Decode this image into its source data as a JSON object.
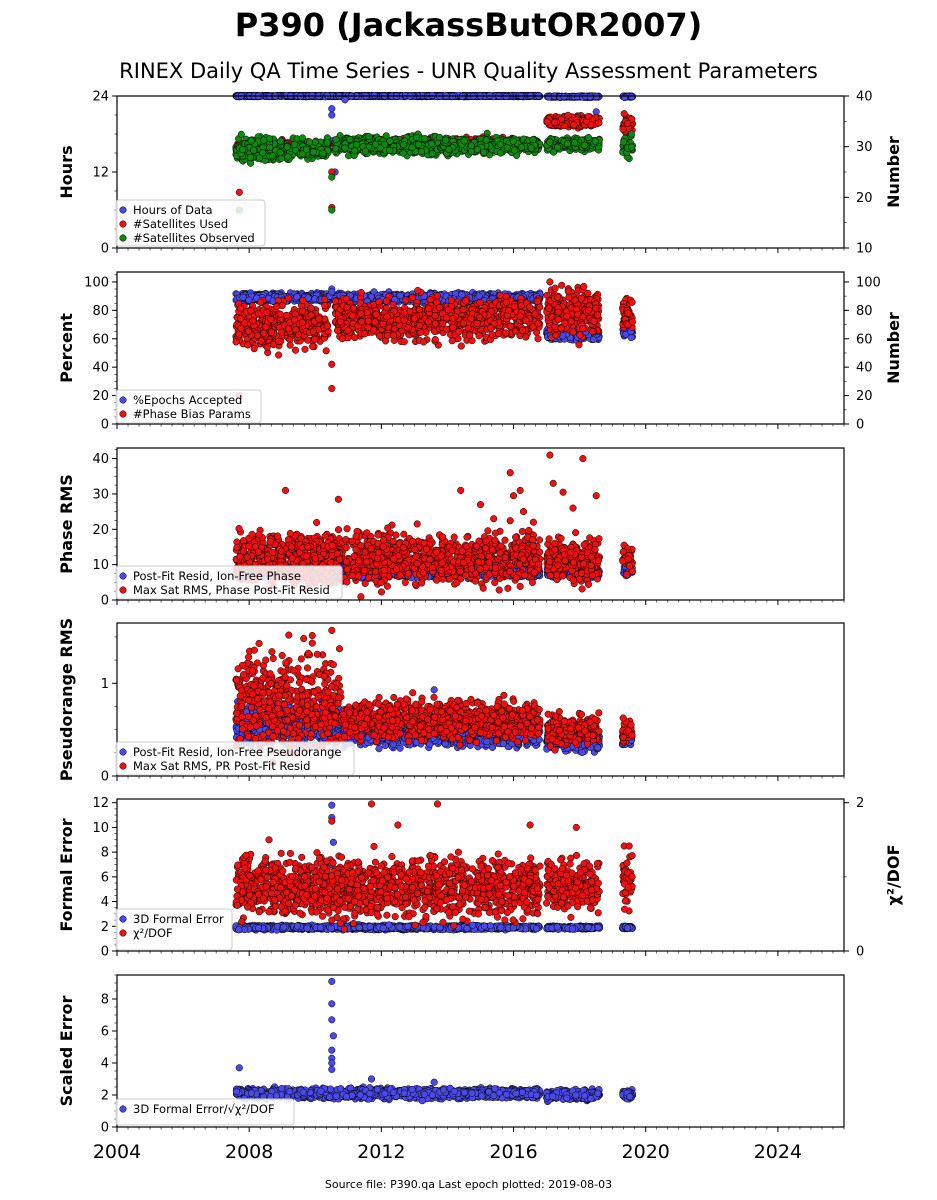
{
  "header": {
    "title": "P390 (JackassButOR2007)",
    "subtitle": "RINEX Daily QA Time Series - UNR Quality Assessment Parameters"
  },
  "footer": {
    "source": "Source file: P390.qa Last epoch plotted: 2019-08-03"
  },
  "colors": {
    "blue": "#4a4ae8",
    "red": "#ee1111",
    "green": "#118811"
  },
  "chart_data": [
    {
      "type": "scatter",
      "panel": "hours",
      "xlabel": "",
      "ylabel": "Hours",
      "y2label": "Number",
      "xlim": [
        2004,
        2026
      ],
      "ylim": [
        0,
        24
      ],
      "y2lim": [
        10,
        40
      ],
      "yticks": [
        "0",
        "12",
        "24"
      ],
      "y2ticks": [
        "10",
        "20",
        "30",
        "40"
      ],
      "legend": "lower-left",
      "series": [
        {
          "name": "Hours of Data",
          "color": "blue",
          "axis": "left",
          "segments": [
            [
              2007.6,
              2016.8,
              24.0,
              0.05
            ],
            [
              2017.0,
              2018.6,
              23.9,
              0.05
            ],
            [
              2019.3,
              2019.6,
              23.9,
              0.05
            ]
          ],
          "outliers": [
            [
              2010.5,
              21.0
            ],
            [
              2010.5,
              22.0
            ],
            [
              2010.55,
              17.0
            ],
            [
              2010.6,
              12.0
            ],
            [
              2007.7,
              6.0
            ],
            [
              2010.9,
              23.4
            ],
            [
              2018.5,
              21.5
            ]
          ]
        },
        {
          "name": "#Satellites Used",
          "color": "red",
          "axis": "right",
          "segments": [
            [
              2007.6,
              2010.4,
              30.0,
              0.5
            ],
            [
              2010.6,
              2016.8,
              30.5,
              0.5
            ],
            [
              2017.0,
              2018.6,
              35.0,
              0.5
            ],
            [
              2019.3,
              2019.6,
              34.5,
              0.8
            ]
          ],
          "outliers": [
            [
              2007.7,
              21.0
            ],
            [
              2010.5,
              18.0
            ],
            [
              2010.5,
              25.0
            ],
            [
              2009.0,
              30.0
            ],
            [
              2019.35,
              36.5
            ]
          ]
        },
        {
          "name": "#Satellites Observed",
          "color": "green",
          "axis": "right",
          "segments": [
            [
              2007.6,
              2010.4,
              29.5,
              1.0
            ],
            [
              2010.6,
              2016.8,
              30.2,
              0.8
            ],
            [
              2017.0,
              2018.6,
              30.5,
              0.6
            ],
            [
              2019.3,
              2019.6,
              30.0,
              1.2
            ]
          ],
          "outliers": [
            [
              2007.7,
              17.5
            ],
            [
              2010.5,
              17.5
            ],
            [
              2010.5,
              24.0
            ]
          ]
        }
      ]
    },
    {
      "type": "scatter",
      "panel": "percent",
      "xlabel": "",
      "ylabel": "Percent",
      "y2label": "Number",
      "xlim": [
        2004,
        2026
      ],
      "ylim": [
        0,
        107
      ],
      "y2lim": [
        0,
        107
      ],
      "yticks": [
        "0",
        "20",
        "40",
        "60",
        "80",
        "100"
      ],
      "y2ticks": [
        "0",
        "20",
        "40",
        "60",
        "80",
        "100"
      ],
      "legend": "lower-left",
      "series": [
        {
          "name": "%Epochs Accepted",
          "color": "blue",
          "axis": "left",
          "segments": [
            [
              2007.6,
              2016.8,
              89.0,
              1.5
            ],
            [
              2017.0,
              2018.6,
              63.0,
              2.0
            ],
            [
              2019.3,
              2019.6,
              65.0,
              2.0
            ]
          ],
          "outliers": [
            [
              2010.5,
              95.0
            ],
            [
              2010.5,
              93.0
            ]
          ]
        },
        {
          "name": "#Phase Bias Params",
          "color": "red",
          "axis": "right",
          "segments": [
            [
              2007.6,
              2010.4,
              70.0,
              8.0
            ],
            [
              2010.6,
              2016.8,
              74.0,
              7.0
            ],
            [
              2017.0,
              2018.6,
              80.0,
              8.0
            ],
            [
              2019.3,
              2019.6,
              78.0,
              7.0
            ]
          ],
          "outliers": [
            [
              2007.7,
              20.0
            ],
            [
              2010.5,
              25.0
            ],
            [
              2010.5,
              42.0
            ],
            [
              2017.1,
              100.0
            ],
            [
              2013.1,
              94.0
            ]
          ]
        }
      ]
    },
    {
      "type": "scatter",
      "panel": "phase",
      "xlabel": "",
      "ylabel": "Phase RMS",
      "xlim": [
        2004,
        2026
      ],
      "ylim": [
        0,
        43
      ],
      "yticks": [
        "0",
        "10",
        "20",
        "30",
        "40"
      ],
      "legend": "lower-left",
      "series": [
        {
          "name": "Post-Fit Resid, Ion-Free Phase",
          "color": "blue",
          "axis": "left",
          "segments": [
            [
              2007.6,
              2016.8,
              8.0,
              0.8
            ],
            [
              2017.0,
              2018.6,
              8.0,
              0.8
            ],
            [
              2019.3,
              2019.6,
              8.5,
              0.8
            ]
          ],
          "outliers": [
            [
              2010.5,
              6.5
            ]
          ]
        },
        {
          "name": "Max Sat RMS, Phase Post-Fit Resid",
          "color": "red",
          "axis": "left",
          "segments": [
            [
              2007.6,
              2016.8,
              12.0,
              3.5
            ],
            [
              2017.0,
              2018.6,
              11.5,
              3.0
            ],
            [
              2019.3,
              2019.6,
              12.0,
              2.0
            ]
          ],
          "outliers": [
            [
              2009.1,
              31.0
            ],
            [
              2010.7,
              28.5
            ],
            [
              2014.4,
              31.0
            ],
            [
              2017.1,
              41.0
            ],
            [
              2018.1,
              40.0
            ],
            [
              2015.9,
              36.0
            ],
            [
              2016.2,
              31.0
            ],
            [
              2017.5,
              30.5
            ],
            [
              2018.5,
              29.5
            ],
            [
              2016.0,
              29.5
            ],
            [
              2016.3,
              25.0
            ],
            [
              2015.0,
              27.0
            ],
            [
              2017.8,
              26.0
            ],
            [
              2016.6,
              22.0
            ],
            [
              2015.4,
              23.0
            ],
            [
              2017.2,
              33.0
            ]
          ]
        }
      ]
    },
    {
      "type": "scatter",
      "panel": "pseudorange",
      "xlabel": "",
      "ylabel": "Pseudorange RMS",
      "xlim": [
        2004,
        2026
      ],
      "ylim": [
        0,
        1.65
      ],
      "yticks": [
        "0",
        "1"
      ],
      "legend": "lower-left",
      "series": [
        {
          "name": "Post-Fit Resid, Ion-Free Pseudorange",
          "color": "blue",
          "axis": "left",
          "segments": [
            [
              2007.6,
              2010.8,
              0.55,
              0.1
            ],
            [
              2010.8,
              2016.8,
              0.45,
              0.06
            ],
            [
              2017.0,
              2018.6,
              0.38,
              0.05
            ],
            [
              2019.3,
              2019.6,
              0.38,
              0.04
            ]
          ],
          "outliers": [
            [
              2013.6,
              0.93
            ]
          ]
        },
        {
          "name": "Max Sat RMS, PR Post-Fit Resid",
          "color": "red",
          "axis": "left",
          "segments": [
            [
              2007.6,
              2010.8,
              0.8,
              0.25
            ],
            [
              2010.8,
              2016.8,
              0.6,
              0.1
            ],
            [
              2017.0,
              2018.6,
              0.5,
              0.08
            ],
            [
              2019.3,
              2019.6,
              0.48,
              0.05
            ]
          ],
          "outliers": [
            [
              2008.3,
              1.43
            ],
            [
              2009.2,
              1.52
            ],
            [
              2010.5,
              1.57
            ],
            [
              2010.55,
              1.2
            ],
            [
              2009.0,
              1.3
            ],
            [
              2008.5,
              1.25
            ]
          ]
        }
      ]
    },
    {
      "type": "scatter",
      "panel": "formal",
      "xlabel": "",
      "ylabel": "Formal Error",
      "y2label": "χ²/DOF",
      "xlim": [
        2004,
        2026
      ],
      "ylim": [
        0,
        12.3
      ],
      "y2lim": [
        0,
        2.05
      ],
      "yticks": [
        "0",
        "2",
        "4",
        "6",
        "8",
        "10",
        "12"
      ],
      "y2ticks": [
        "0",
        "2"
      ],
      "legend": "lower-left",
      "series": [
        {
          "name": "3D Formal Error",
          "color": "blue",
          "axis": "left",
          "segments": [
            [
              2007.6,
              2016.8,
              1.9,
              0.08
            ],
            [
              2017.0,
              2018.6,
              1.9,
              0.06
            ],
            [
              2019.3,
              2019.6,
              1.9,
              0.06
            ]
          ],
          "outliers": [
            [
              2010.5,
              11.8
            ],
            [
              2010.5,
              10.8
            ],
            [
              2010.55,
              8.8
            ],
            [
              2010.5,
              7.0
            ],
            [
              2007.7,
              3.8
            ]
          ]
        },
        {
          "name": "χ²/DOF",
          "color": "red",
          "axis": "left",
          "segments": [
            [
              2007.6,
              2016.8,
              5.2,
              1.2
            ],
            [
              2017.0,
              2018.6,
              5.4,
              1.0
            ],
            [
              2019.3,
              2019.6,
              5.5,
              1.0
            ]
          ],
          "outliers": [
            [
              2011.7,
              11.9
            ],
            [
              2013.7,
              11.9
            ],
            [
              2010.5,
              10.5
            ],
            [
              2012.5,
              10.2
            ],
            [
              2016.5,
              10.2
            ],
            [
              2017.9,
              10.0
            ],
            [
              2019.35,
              8.5
            ],
            [
              2019.5,
              8.5
            ],
            [
              2008.6,
              9.0
            ],
            [
              2010.5,
              2.5
            ],
            [
              2010.55,
              3.5
            ]
          ]
        }
      ]
    },
    {
      "type": "scatter",
      "panel": "scaled",
      "xlabel": "",
      "ylabel": "Scaled Error",
      "xlim": [
        2004,
        2026
      ],
      "ylim": [
        0,
        9.5
      ],
      "yticks": [
        "0",
        "2",
        "4",
        "6",
        "8"
      ],
      "xticks": [
        "2004",
        "2008",
        "2012",
        "2016",
        "2020",
        "2024"
      ],
      "legend": "lower-left",
      "series": [
        {
          "name": "3D Formal Error/√χ²/DOF",
          "color": "blue",
          "axis": "left",
          "segments": [
            [
              2007.6,
              2016.8,
              2.1,
              0.15
            ],
            [
              2017.0,
              2018.6,
              2.0,
              0.15
            ],
            [
              2019.3,
              2019.6,
              2.0,
              0.15
            ]
          ],
          "outliers": [
            [
              2010.5,
              9.1
            ],
            [
              2010.5,
              7.7
            ],
            [
              2010.5,
              6.7
            ],
            [
              2010.55,
              5.7
            ],
            [
              2010.5,
              4.8
            ],
            [
              2010.5,
              4.3
            ],
            [
              2010.5,
              4.0
            ],
            [
              2010.5,
              3.6
            ],
            [
              2007.7,
              3.7
            ],
            [
              2011.7,
              3.0
            ],
            [
              2013.6,
              2.8
            ]
          ]
        }
      ]
    }
  ]
}
